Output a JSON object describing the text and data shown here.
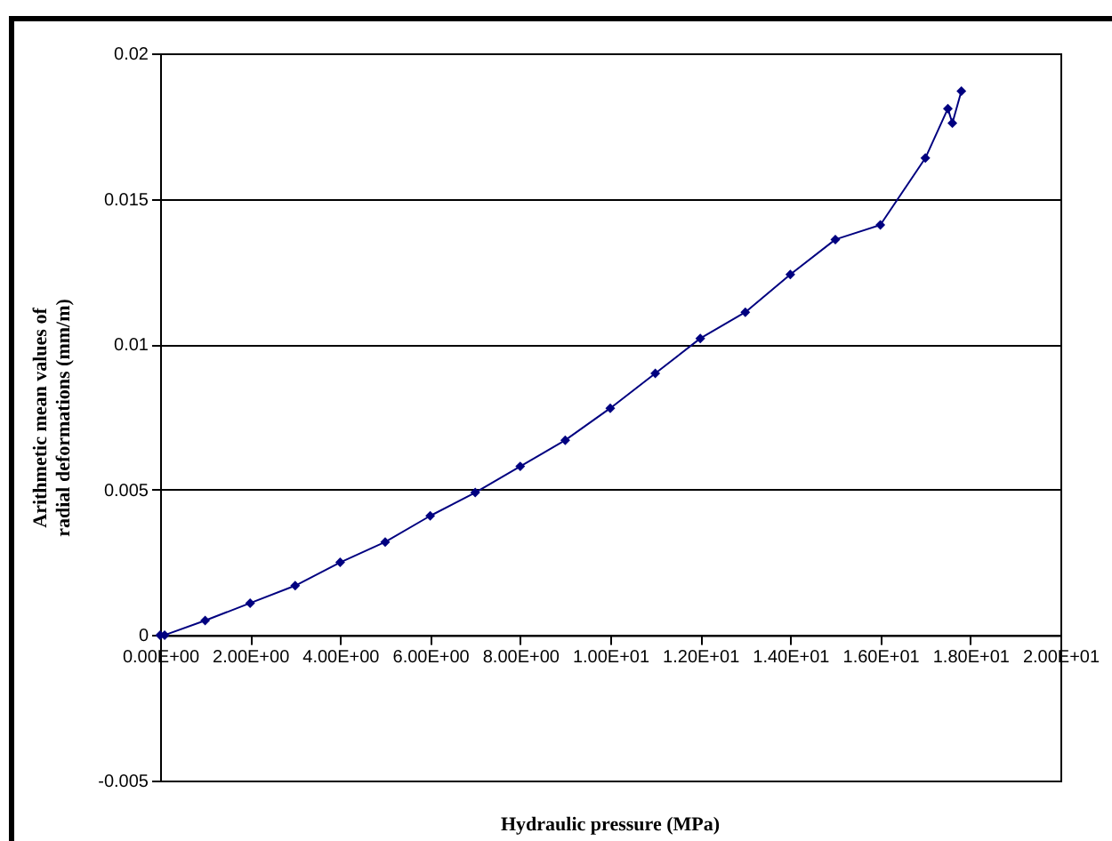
{
  "chart_data": {
    "type": "line",
    "xlabel": "Hydraulic pressure (MPa)",
    "ylabel": "Arithmetic mean values of\nradial deformations (mm/m)",
    "x": [
      0,
      0.1,
      1,
      2,
      3,
      4,
      5,
      6,
      7,
      8,
      9,
      10,
      11,
      12,
      13,
      14,
      15,
      16,
      17,
      17.5,
      17.6,
      17.8
    ],
    "series": [
      {
        "color": "#000080",
        "values": [
          0,
          0,
          0.0005,
          0.0011,
          0.0017,
          0.0025,
          0.0032,
          0.0041,
          0.0049,
          0.0058,
          0.0067,
          0.0078,
          0.009,
          0.0102,
          0.0111,
          0.0124,
          0.0136,
          0.0141,
          0.0164,
          0.0181,
          0.0176,
          0.0187
        ]
      }
    ],
    "xlim": [
      0,
      20
    ],
    "xticks": [
      {
        "value": 0,
        "label": "0.00E+00"
      },
      {
        "value": 2,
        "label": "2.00E+00"
      },
      {
        "value": 4,
        "label": "4.00E+00"
      },
      {
        "value": 6,
        "label": "6.00E+00"
      },
      {
        "value": 8,
        "label": "8.00E+00"
      },
      {
        "value": 10,
        "label": "1.00E+01"
      },
      {
        "value": 12,
        "label": "1.20E+01"
      },
      {
        "value": 14,
        "label": "1.40E+01"
      },
      {
        "value": 16,
        "label": "1.60E+01"
      },
      {
        "value": 18,
        "label": "1.80E+01"
      },
      {
        "value": 20,
        "label": "2.00E+01"
      }
    ],
    "ylim": [
      -0.005,
      0.02
    ],
    "yticks": [
      -0.005,
      0,
      0.005,
      0.01,
      0.015,
      0.02
    ],
    "grid": "y",
    "marker": "diamond",
    "line_style": "solid"
  }
}
